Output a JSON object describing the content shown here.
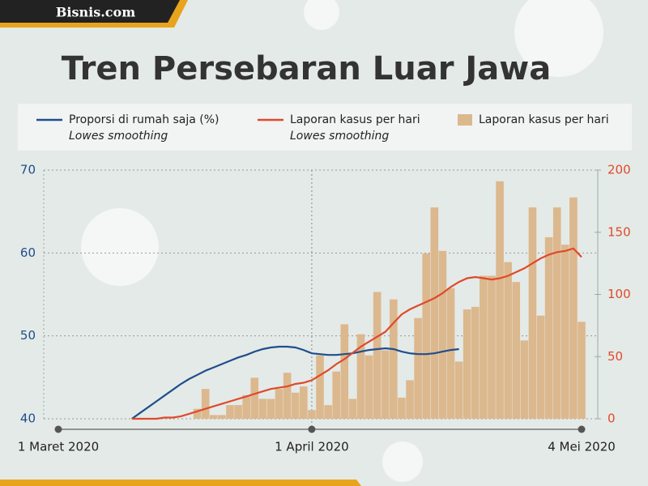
{
  "header": {
    "brand": "Bisnis.com"
  },
  "chart_data": {
    "type": "bar-line",
    "title": "Tren Persebaran Luar Jawa",
    "categories": [
      "1 Maret 2020",
      null,
      null,
      null,
      null,
      null,
      null,
      null,
      null,
      null,
      null,
      null,
      null,
      null,
      null,
      null,
      null,
      null,
      null,
      null,
      null,
      null,
      null,
      null,
      null,
      null,
      null,
      null,
      null,
      null,
      null,
      "1 April 2020",
      null,
      null,
      null,
      null,
      null,
      null,
      null,
      null,
      null,
      null,
      null,
      null,
      null,
      null,
      null,
      null,
      null,
      null,
      null,
      null,
      null,
      null,
      null,
      null,
      null,
      null,
      null,
      null,
      null,
      null,
      null,
      null,
      "4 Mei 2020"
    ],
    "ylim": [
      40,
      70
    ],
    "yticks": [
      40,
      50,
      60,
      70
    ],
    "y2lim": [
      0,
      200
    ],
    "y2ticks": [
      0,
      50,
      100,
      150,
      200
    ],
    "grid": true,
    "series": [
      {
        "name": "Laporan kasus per hari",
        "kind": "bar",
        "axis": "y2",
        "color": "#dcb88e",
        "values": [
          null,
          null,
          null,
          null,
          null,
          null,
          null,
          null,
          null,
          null,
          null,
          null,
          null,
          null,
          null,
          null,
          null,
          8,
          24,
          3,
          3,
          11,
          11,
          19,
          33,
          16,
          16,
          24,
          37,
          21,
          26,
          7,
          51,
          11,
          38,
          76,
          16,
          68,
          51,
          102,
          55,
          96,
          17,
          31,
          81,
          133,
          170,
          135,
          105,
          46,
          88,
          90,
          115,
          115,
          191,
          126,
          110,
          63,
          170,
          83,
          146,
          170,
          140,
          178,
          78
        ]
      },
      {
        "name": "Proporsi di rumah saja (%)",
        "note": "Lowes smoothing",
        "kind": "line",
        "color": "#1f4e8c",
        "values": [
          null,
          null,
          null,
          null,
          null,
          null,
          null,
          null,
          null,
          40.0,
          40.7,
          41.4,
          42.1,
          42.8,
          43.5,
          44.2,
          44.8,
          45.3,
          45.8,
          46.2,
          46.6,
          47.0,
          47.4,
          47.7,
          48.1,
          48.4,
          48.6,
          48.7,
          48.7,
          48.6,
          48.3,
          47.9,
          47.8,
          47.7,
          47.7,
          47.8,
          47.9,
          48.1,
          48.3,
          48.4,
          48.5,
          48.4,
          48.1,
          47.9,
          47.8,
          47.8,
          47.9,
          48.1,
          48.3,
          48.4,
          null,
          null,
          null,
          null,
          null,
          null,
          null,
          null,
          null,
          null,
          null,
          null,
          null,
          null,
          null
        ]
      },
      {
        "name": "Laporan kasus per hari",
        "note": "Lowes smoothing",
        "kind": "line",
        "axis": "y2",
        "color": "#e0492b",
        "values": [
          null,
          null,
          null,
          null,
          null,
          null,
          null,
          null,
          null,
          0,
          0,
          0,
          0,
          1,
          1,
          2,
          4,
          6,
          8,
          10,
          12,
          14,
          16,
          18,
          20,
          22,
          24,
          25,
          26,
          28,
          29,
          31,
          35,
          39,
          44,
          48,
          53,
          58,
          62,
          66,
          70,
          77,
          84,
          88,
          91,
          94,
          97,
          101,
          106,
          110,
          113,
          114,
          113,
          112,
          113,
          115,
          118,
          121,
          125,
          129,
          132,
          134,
          135,
          137,
          130
        ]
      }
    ]
  }
}
